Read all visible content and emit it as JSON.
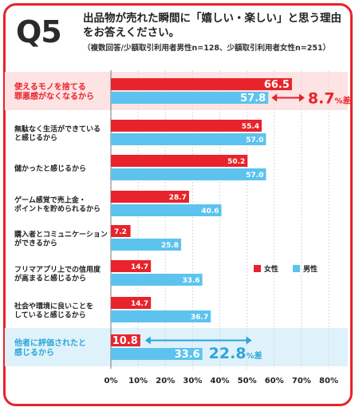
{
  "header": {
    "q_label": "Q5",
    "title": "出品物が売れた瞬間に「嬉しい・楽しい」と思う理由をお答えください。",
    "subtitle": "（複数回答/少額取引利用者男性n=128、少額取引利用者女性n=251）"
  },
  "chart_data": {
    "type": "bar",
    "orientation": "horizontal",
    "categories": [
      [
        "使えるモノを捨てる",
        "罪悪感がなくなるから"
      ],
      [
        "無駄なく生活ができている",
        "と感じるから"
      ],
      [
        "儲かったと感じるから"
      ],
      [
        "ゲーム感覚で売上金・",
        "ポイントを貯められるから"
      ],
      [
        "購入者とコミュニケーション",
        "ができるから"
      ],
      [
        "フリマアプリ上での信用度",
        "が高まると感じるから"
      ],
      [
        "社会や環境に良いことを",
        "していると感じるから"
      ],
      [
        "他者に評価されたと",
        "感じるから"
      ]
    ],
    "series": [
      {
        "name": "女性",
        "color": "#e8232b",
        "values": [
          66.5,
          55.4,
          50.2,
          28.7,
          7.2,
          14.7,
          14.7,
          10.8
        ]
      },
      {
        "name": "男性",
        "color": "#5cc3ee",
        "values": [
          57.8,
          57.0,
          57.0,
          40.6,
          25.8,
          33.6,
          36.7,
          33.6
        ]
      }
    ],
    "value_labels": {
      "女性": [
        "66.5",
        "55.4",
        "50.2",
        "28.7",
        "7.2",
        "14.7",
        "14.7",
        "10.8"
      ],
      "男性": [
        "57.8",
        "57.0",
        "57.0",
        "40.6",
        "25.8",
        "33.6",
        "36.7",
        "33.6"
      ]
    },
    "xlim": [
      0,
      80
    ],
    "x_ticks": [
      "0%",
      "10%",
      "20%",
      "30%",
      "40%",
      "50%",
      "60%",
      "70%",
      "80%"
    ],
    "grid": true,
    "legend": "right",
    "annotations": [
      {
        "category_index": 0,
        "num": "8.7",
        "unit": "%差",
        "color": "#e8232b"
      },
      {
        "category_index": 7,
        "num": "22.8",
        "unit": "%差",
        "color": "#2ba6d9"
      }
    ],
    "highlight": [
      {
        "category_index": 0,
        "color": "#fde3e4"
      },
      {
        "category_index": 7,
        "color": "#dff2fb"
      }
    ]
  }
}
